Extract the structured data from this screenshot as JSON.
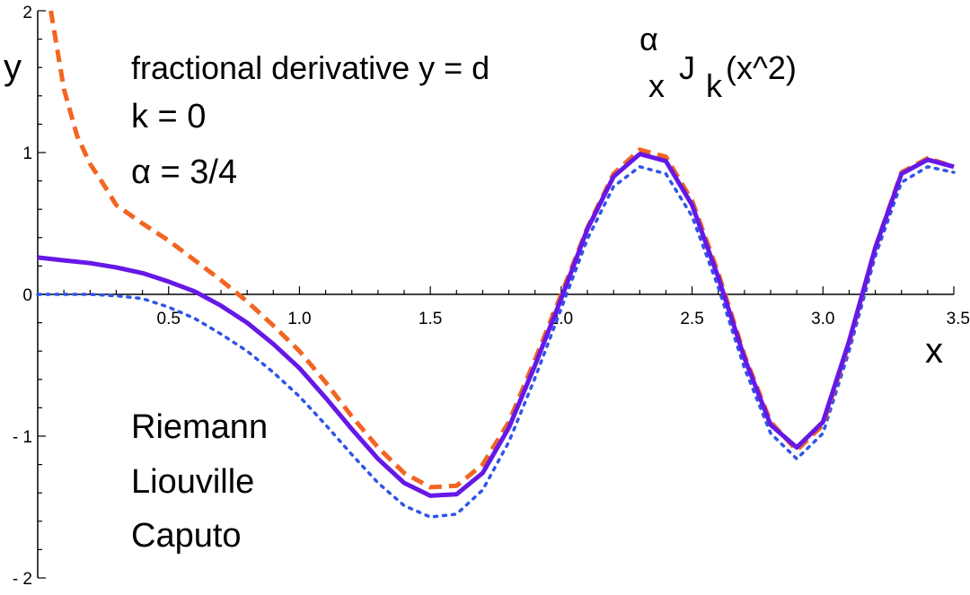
{
  "chart_data": {
    "type": "line",
    "title_parts": {
      "prefix": "fractional derivative  y = d",
      "superscript": "α",
      "subscript_x": "x",
      "function": "J",
      "subscript_k": "k",
      "argument": "(x^2)"
    },
    "annotations": [
      "k = 0",
      "α = 3/4"
    ],
    "legend_labels": [
      "Riemann",
      "Liouville",
      "Caputo"
    ],
    "xlabel": "x",
    "ylabel": "y",
    "xlim": [
      0,
      3.5
    ],
    "ylim": [
      -2,
      2
    ],
    "x_ticks": [
      "0.5",
      "1.0",
      "1.5",
      "2.0",
      "2.5",
      "3.0",
      "3.5"
    ],
    "y_ticks": [
      "2",
      "1",
      "0",
      "- 1",
      "- 2"
    ],
    "grid": false,
    "series": [
      {
        "style": "dashed",
        "color": "#f26522",
        "x": [
          0.05,
          0.1,
          0.15,
          0.2,
          0.25,
          0.3,
          0.4,
          0.5,
          0.6,
          0.7,
          0.8,
          0.9,
          1.0,
          1.1,
          1.2,
          1.3,
          1.4,
          1.5,
          1.6,
          1.7,
          1.8,
          1.9,
          2.0,
          2.1,
          2.2,
          2.3,
          2.4,
          2.5,
          2.6,
          2.7,
          2.8,
          2.9,
          3.0,
          3.1,
          3.2,
          3.3,
          3.4,
          3.5
        ],
        "y": [
          2.0,
          1.45,
          1.12,
          0.92,
          0.78,
          0.63,
          0.5,
          0.38,
          0.24,
          0.1,
          -0.05,
          -0.22,
          -0.4,
          -0.62,
          -0.86,
          -1.08,
          -1.26,
          -1.36,
          -1.35,
          -1.2,
          -0.9,
          -0.46,
          0.0,
          0.47,
          0.85,
          1.02,
          0.97,
          0.66,
          0.15,
          -0.43,
          -0.9,
          -1.1,
          -0.92,
          -0.34,
          0.33,
          0.86,
          0.96,
          0.9
        ]
      },
      {
        "style": "solid",
        "color": "#6618e6",
        "x": [
          0.0,
          0.1,
          0.2,
          0.3,
          0.4,
          0.5,
          0.6,
          0.7,
          0.8,
          0.9,
          1.0,
          1.1,
          1.2,
          1.3,
          1.4,
          1.5,
          1.6,
          1.7,
          1.8,
          1.9,
          2.0,
          2.1,
          2.2,
          2.3,
          2.4,
          2.5,
          2.6,
          2.7,
          2.8,
          2.9,
          3.0,
          3.1,
          3.2,
          3.3,
          3.4,
          3.5
        ],
        "y": [
          0.26,
          0.24,
          0.22,
          0.19,
          0.15,
          0.09,
          0.02,
          -0.08,
          -0.2,
          -0.35,
          -0.52,
          -0.73,
          -0.95,
          -1.16,
          -1.33,
          -1.42,
          -1.41,
          -1.26,
          -0.94,
          -0.5,
          -0.03,
          0.46,
          0.83,
          0.99,
          0.94,
          0.63,
          0.12,
          -0.45,
          -0.92,
          -1.08,
          -0.9,
          -0.33,
          0.33,
          0.85,
          0.95,
          0.9
        ]
      },
      {
        "style": "dotted",
        "color": "#2f55e8",
        "x": [
          0.0,
          0.1,
          0.2,
          0.3,
          0.4,
          0.5,
          0.6,
          0.7,
          0.8,
          0.9,
          1.0,
          1.1,
          1.2,
          1.3,
          1.4,
          1.5,
          1.6,
          1.7,
          1.8,
          1.9,
          2.0,
          2.1,
          2.2,
          2.3,
          2.4,
          2.5,
          2.6,
          2.7,
          2.8,
          2.9,
          3.0,
          3.1,
          3.2,
          3.3,
          3.4,
          3.5
        ],
        "y": [
          0.0,
          0.0,
          0.0,
          -0.01,
          -0.03,
          -0.09,
          -0.17,
          -0.28,
          -0.4,
          -0.55,
          -0.72,
          -0.92,
          -1.13,
          -1.33,
          -1.49,
          -1.57,
          -1.55,
          -1.38,
          -1.04,
          -0.59,
          -0.1,
          0.39,
          0.76,
          0.9,
          0.85,
          0.55,
          0.05,
          -0.52,
          -0.98,
          -1.16,
          -0.98,
          -0.4,
          0.27,
          0.79,
          0.9,
          0.86
        ]
      }
    ]
  }
}
